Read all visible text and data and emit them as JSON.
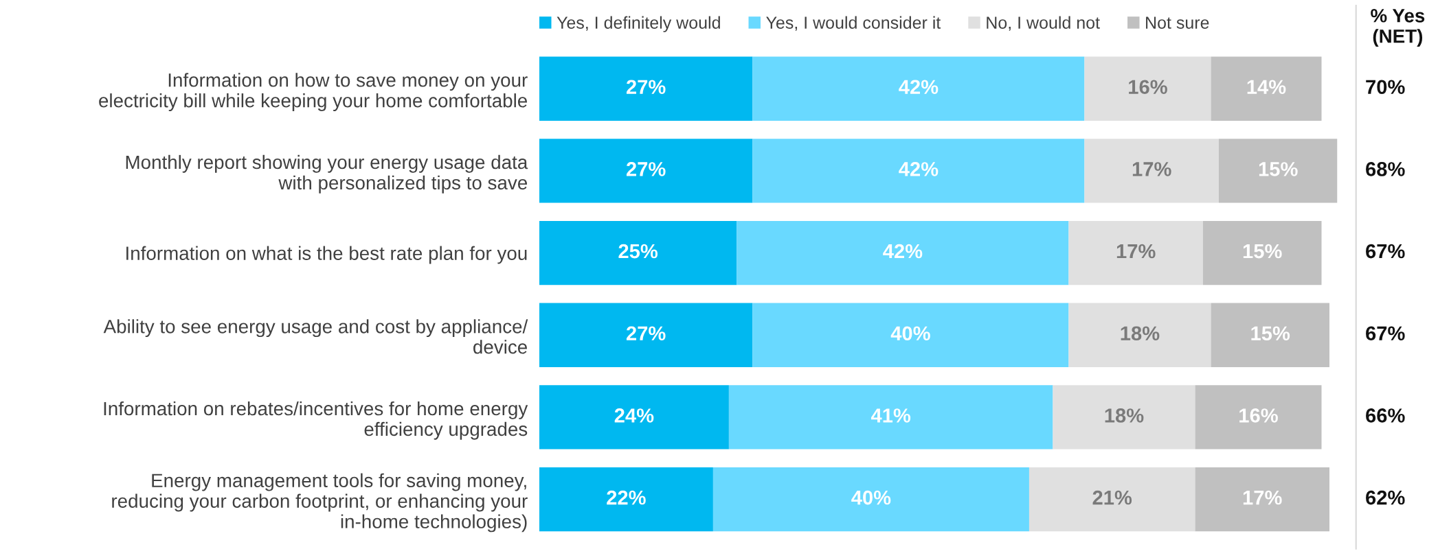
{
  "chart_data": {
    "type": "bar",
    "orientation": "horizontal",
    "stacked": true,
    "categories": [
      "Information on how to save money on your\nelectricity bill while keeping your home comfortable",
      "Monthly report showing your energy usage data\nwith personalized tips to save",
      "Information on what is the best rate plan for you",
      "Ability to see energy usage and cost by appliance/\ndevice",
      "Information on rebates/incentives for home energy\nefficiency upgrades",
      "Energy management tools for saving money,\nreducing your carbon footprint, or enhancing your\nin-home technologies)"
    ],
    "series": [
      {
        "name": "Yes, I definitely would",
        "color": "#00b8f0",
        "values": [
          27,
          27,
          25,
          27,
          24,
          22
        ],
        "value_labels": [
          "27%",
          "27%",
          "25%",
          "27%",
          "24%",
          "22%"
        ]
      },
      {
        "name": "Yes, I would consider it",
        "color": "#69d9ff",
        "values": [
          42,
          42,
          42,
          40,
          41,
          40
        ],
        "value_labels": [
          "42%",
          "42%",
          "42%",
          "40%",
          "41%",
          "40%"
        ]
      },
      {
        "name": "No, I would not",
        "color": "#e0e0e0",
        "values": [
          16,
          17,
          17,
          18,
          18,
          21
        ],
        "value_labels": [
          "16%",
          "17%",
          "17%",
          "18%",
          "18%",
          "21%"
        ]
      },
      {
        "name": "Not sure",
        "color": "#c0c0c0",
        "values": [
          14,
          15,
          15,
          15,
          16,
          17
        ],
        "value_labels": [
          "14%",
          "15%",
          "15%",
          "15%",
          "16%",
          "17%"
        ]
      }
    ],
    "annotations": [
      "% Yes\n(NET)",
      "70%",
      "68%",
      "67%",
      "67%",
      "66%",
      "62%"
    ],
    "legend": "top",
    "grid": false
  }
}
